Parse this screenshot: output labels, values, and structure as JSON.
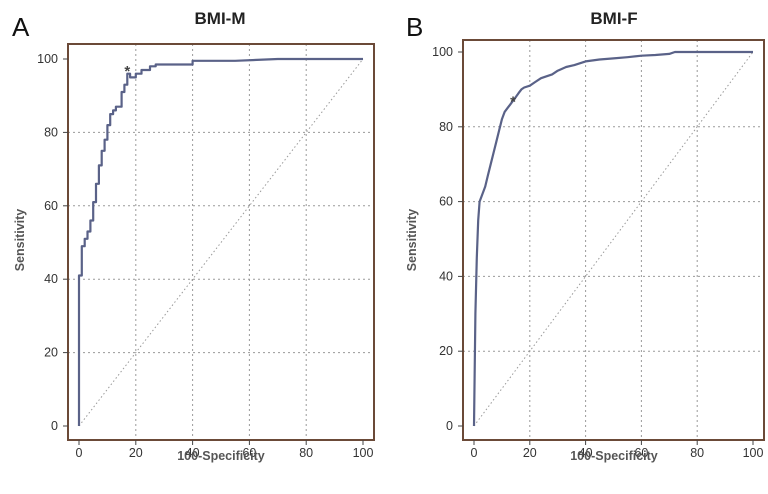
{
  "figure": {
    "colors": {
      "frame": "#6b4a38",
      "curve": "#5a6288",
      "grid": "#9a9a9a",
      "diagonal": "#9a9a9a"
    }
  },
  "chart_data": [
    {
      "type": "line",
      "panel": "A",
      "title": "BMI-M",
      "xlabel": "100-Specificity",
      "ylabel": "Sensitivity",
      "xlim": [
        0,
        100
      ],
      "ylim": [
        0,
        100
      ],
      "xticks": [
        "0",
        "20",
        "40",
        "60",
        "80",
        "100"
      ],
      "yticks": [
        "0",
        "20",
        "40",
        "60",
        "80",
        "100"
      ],
      "grid": true,
      "reference_line": "diagonal",
      "star_marker": {
        "text": "*",
        "x": 17,
        "y": 97
      },
      "series": [
        {
          "x": [
            0,
            0,
            1,
            1,
            2,
            2,
            3,
            3,
            4,
            4,
            5,
            5,
            6,
            6,
            7,
            7,
            8,
            8,
            9,
            9,
            10,
            10,
            11,
            11,
            12,
            12,
            13,
            13,
            15,
            15,
            16,
            16,
            17,
            17,
            18,
            18,
            20,
            20,
            22,
            22,
            25,
            25,
            27,
            27,
            33,
            40,
            40,
            55,
            70,
            100
          ],
          "y": [
            0,
            41,
            41,
            49,
            49,
            51,
            51,
            53,
            53,
            56,
            56,
            61,
            61,
            66,
            66,
            71,
            71,
            75,
            75,
            78,
            78,
            82,
            82,
            85,
            85,
            86,
            86,
            87,
            87,
            91,
            91,
            93,
            93,
            96,
            96,
            95,
            95,
            96,
            96,
            97,
            97,
            98,
            98,
            98.5,
            98.5,
            98.5,
            99.5,
            99.5,
            100,
            100
          ]
        }
      ]
    },
    {
      "type": "line",
      "panel": "B",
      "title": "BMI-F",
      "xlabel": "100-Specificity",
      "ylabel": "Sensitivity",
      "xlim": [
        0,
        100
      ],
      "ylim": [
        0,
        100
      ],
      "xticks": [
        "0",
        "20",
        "40",
        "60",
        "80",
        "100"
      ],
      "yticks": [
        "0",
        "20",
        "40",
        "60",
        "80",
        "100"
      ],
      "grid": true,
      "reference_line": "diagonal",
      "star_marker": {
        "text": "*",
        "x": 14,
        "y": 87
      },
      "series": [
        {
          "x": [
            0,
            0.5,
            1,
            1.5,
            2,
            3,
            4,
            5,
            6,
            7,
            8,
            9,
            10,
            11,
            12,
            13,
            14,
            15,
            16,
            17,
            18,
            20,
            22,
            24,
            26,
            28,
            30,
            33,
            36,
            40,
            45,
            50,
            55,
            60,
            65,
            70,
            72,
            75,
            80,
            85,
            90,
            95,
            100
          ],
          "y": [
            0,
            30,
            45,
            55,
            60,
            62,
            64,
            67,
            70,
            73,
            76,
            79,
            82,
            84,
            85,
            86,
            87,
            88,
            89,
            90,
            90.5,
            91,
            92,
            93,
            93.5,
            94,
            95,
            96,
            96.5,
            97.5,
            98,
            98.3,
            98.6,
            99,
            99.2,
            99.5,
            100,
            100,
            100,
            100,
            100,
            100,
            100
          ]
        }
      ]
    }
  ]
}
